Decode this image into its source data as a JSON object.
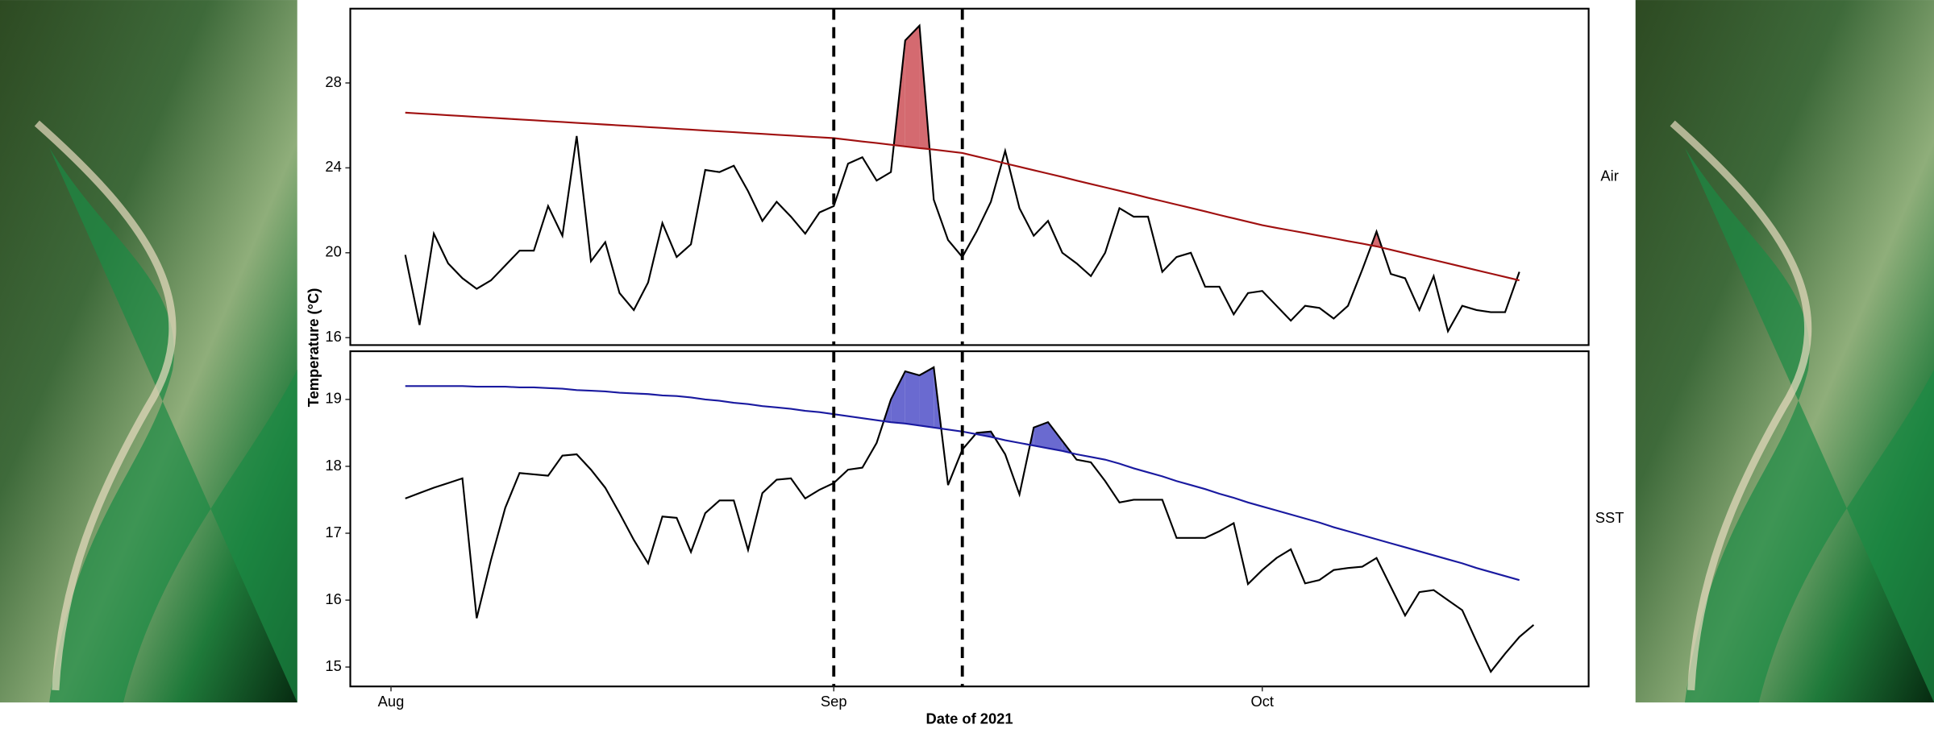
{
  "chart_data": {
    "type": "line",
    "xlabel": "Date of 2021",
    "ylabel": "Temperature (°C)",
    "xlim": [
      -2.85,
      83.85
    ],
    "xticks": [
      {
        "value": 0,
        "label": "Aug"
      },
      {
        "value": 31,
        "label": "Sep"
      },
      {
        "value": 61,
        "label": "Oct"
      }
    ],
    "vlines": [
      31,
      40
    ],
    "panels": [
      {
        "label": "Air",
        "ylim": [
          15.65,
          31.5
        ],
        "yticks": [
          16,
          20,
          24,
          28
        ],
        "x": [
          1,
          2,
          3,
          4,
          5,
          6,
          7,
          8,
          9,
          10,
          11,
          12,
          13,
          14,
          15,
          16,
          17,
          18,
          19,
          20,
          21,
          22,
          23,
          24,
          25,
          26,
          27,
          28,
          29,
          30,
          31,
          32,
          33,
          34,
          35,
          36,
          37,
          38,
          39,
          40,
          41,
          42,
          43,
          44,
          45,
          46,
          47,
          48,
          49,
          50,
          51,
          52,
          53,
          54,
          55,
          56,
          57,
          58,
          59,
          60,
          61,
          62,
          63,
          64,
          65,
          66,
          67,
          68,
          69,
          70,
          71,
          72,
          73,
          74,
          75,
          76,
          77,
          78,
          79
        ],
        "series": [
          {
            "color": "#000000",
            "values": [
              19.9,
              16.6,
              20.9,
              19.5,
              18.8,
              18.3,
              18.7,
              19.4,
              20.1,
              20.1,
              22.2,
              20.8,
              25.5,
              19.6,
              20.5,
              18.1,
              17.3,
              18.6,
              21.4,
              19.8,
              20.4,
              23.9,
              23.8,
              24.1,
              22.9,
              21.5,
              22.4,
              21.7,
              20.9,
              21.9,
              22.2,
              24.2,
              24.5,
              23.4,
              23.8,
              30.0,
              30.7,
              22.5,
              20.6,
              19.8,
              21.0,
              22.4,
              24.8,
              22.1,
              20.8,
              21.5,
              20.0,
              19.5,
              18.9,
              20.0,
              22.1,
              21.7,
              21.7,
              19.1,
              19.8,
              20.0,
              18.4,
              18.4,
              17.1,
              18.1,
              18.2,
              17.5,
              16.8,
              17.5,
              17.4,
              16.9,
              17.5,
              19.2,
              21.0,
              19.0,
              18.8,
              17.3,
              18.9,
              16.3,
              17.5,
              17.3,
              17.2,
              17.2,
              19.1
            ]
          },
          {
            "color": "#a01010",
            "values": [
              26.6,
              26.56,
              26.52,
              26.48,
              26.44,
              26.4,
              26.36,
              26.32,
              26.28,
              26.24,
              26.2,
              26.16,
              26.12,
              26.08,
              26.04,
              26.0,
              25.96,
              25.92,
              25.88,
              25.84,
              25.8,
              25.76,
              25.72,
              25.68,
              25.64,
              25.6,
              25.56,
              25.52,
              25.48,
              25.44,
              25.4,
              25.32,
              25.24,
              25.17,
              25.09,
              25.01,
              24.93,
              24.86,
              24.78,
              24.7,
              24.54,
              24.38,
              24.21,
              24.05,
              23.89,
              23.73,
              23.57,
              23.4,
              23.24,
              23.08,
              22.92,
              22.76,
              22.59,
              22.43,
              22.27,
              22.11,
              21.95,
              21.78,
              21.62,
              21.46,
              21.3,
              21.17,
              21.05,
              20.93,
              20.8,
              20.68,
              20.55,
              20.43,
              20.3,
              20.14,
              19.98,
              19.82,
              19.66,
              19.5,
              19.34,
              19.18,
              19.02,
              18.86,
              18.7
            ]
          }
        ],
        "shade_color": "#d46a70",
        "events": [
          [
            35,
            38
          ],
          [
            68,
            70
          ]
        ]
      },
      {
        "label": "SST",
        "ylim": [
          14.71,
          19.72
        ],
        "yticks": [
          15,
          16,
          17,
          18,
          19
        ],
        "x": [
          1,
          2,
          3,
          4,
          5,
          6,
          7,
          8,
          9,
          10,
          11,
          12,
          13,
          14,
          15,
          16,
          17,
          18,
          19,
          20,
          21,
          22,
          23,
          24,
          25,
          26,
          27,
          28,
          29,
          30,
          31,
          32,
          33,
          34,
          35,
          36,
          37,
          38,
          39,
          40,
          41,
          42,
          43,
          44,
          45,
          46,
          47,
          48,
          49,
          50,
          51,
          52,
          53,
          54,
          55,
          56,
          57,
          58,
          59,
          60,
          61,
          62,
          63,
          64,
          65,
          66,
          67,
          68,
          69,
          70,
          71,
          72,
          73,
          74,
          75,
          76,
          77,
          78,
          79,
          80
        ],
        "series": [
          {
            "color": "#000000",
            "values": [
              17.52,
              17.6,
              17.68,
              17.75,
              17.82,
              15.73,
              16.6,
              17.38,
              17.9,
              17.88,
              17.86,
              18.16,
              18.18,
              17.95,
              17.68,
              17.3,
              16.9,
              16.55,
              17.25,
              17.23,
              16.72,
              17.3,
              17.49,
              17.49,
              16.75,
              17.6,
              17.8,
              17.82,
              17.52,
              17.65,
              17.75,
              17.95,
              17.98,
              18.35,
              19.0,
              19.42,
              19.36,
              19.48,
              17.72,
              18.25,
              18.5,
              18.52,
              18.18,
              17.58,
              18.58,
              18.66,
              18.38,
              18.1,
              18.06,
              17.78,
              17.46,
              17.5,
              17.5,
              17.5,
              16.93,
              16.93,
              16.93,
              17.03,
              17.15,
              16.24,
              16.45,
              16.63,
              16.76,
              16.25,
              16.3,
              16.45,
              16.48,
              16.5,
              16.63,
              16.2,
              15.77,
              16.12,
              16.15,
              16.0,
              15.85,
              15.38,
              14.93,
              15.2,
              15.45,
              15.63
            ]
          },
          {
            "color": "#1a1aa0",
            "values": [
              19.2,
              19.2,
              19.2,
              19.2,
              19.2,
              19.19,
              19.19,
              19.19,
              19.18,
              19.18,
              19.17,
              19.16,
              19.14,
              19.13,
              19.12,
              19.1,
              19.09,
              19.08,
              19.06,
              19.05,
              19.03,
              19.0,
              18.98,
              18.95,
              18.93,
              18.9,
              18.88,
              18.86,
              18.83,
              18.81,
              18.78,
              18.75,
              18.72,
              18.69,
              18.66,
              18.64,
              18.61,
              18.58,
              18.55,
              18.52,
              18.48,
              18.44,
              18.39,
              18.35,
              18.31,
              18.27,
              18.23,
              18.18,
              18.14,
              18.1,
              18.04,
              17.97,
              17.91,
              17.85,
              17.78,
              17.72,
              17.66,
              17.59,
              17.53,
              17.46,
              17.4,
              17.34,
              17.28,
              17.22,
              17.16,
              17.09,
              17.03,
              16.97,
              16.91,
              16.85,
              16.79,
              16.73,
              16.67,
              16.61,
              16.55,
              16.48,
              16.42,
              16.36,
              16.3,
              null
            ]
          }
        ],
        "shade_color": "#6a6ad0",
        "events": [
          [
            34,
            39
          ],
          [
            40,
            43
          ],
          [
            44,
            48
          ]
        ]
      }
    ]
  }
}
